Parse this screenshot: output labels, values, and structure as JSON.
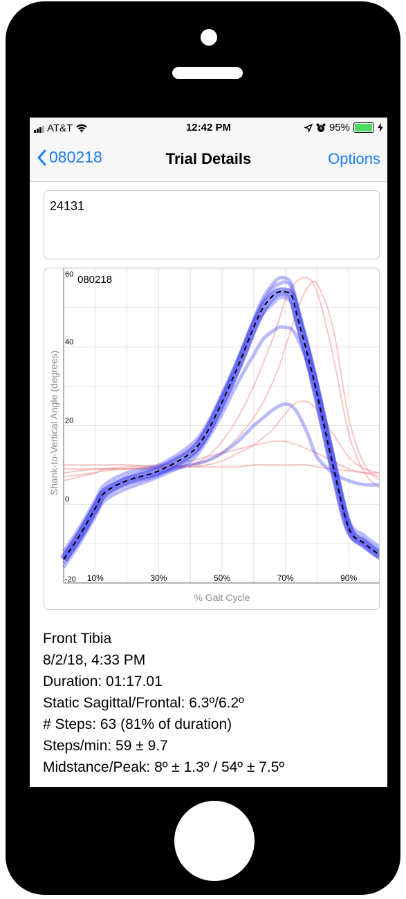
{
  "status_bar": {
    "carrier": "AT&T",
    "time": "12:42 PM",
    "battery_percent": "95%",
    "battery_level": 0.95
  },
  "nav": {
    "back_label": "080218",
    "title": "Trial Details",
    "options_label": "Options"
  },
  "notes": {
    "value": "24131"
  },
  "colors": {
    "accent": "#1a7cf5",
    "blue_trace": "#3a3cf0",
    "red_trace": "#f08080",
    "mean_line": "#000000"
  },
  "chart_data": {
    "type": "line",
    "title": "080218",
    "xlabel": "% Gait Cycle",
    "ylabel": "Shank-to-Vertical Angle (degrees)",
    "xlim": [
      0,
      100
    ],
    "ylim": [
      -20,
      60
    ],
    "x_ticks": [
      {
        "value": 10,
        "label": "10%"
      },
      {
        "value": 30,
        "label": "30%"
      },
      {
        "value": 50,
        "label": "50%"
      },
      {
        "value": 70,
        "label": "70%"
      },
      {
        "value": 90,
        "label": "90%"
      }
    ],
    "y_ticks": [
      {
        "value": 60,
        "label": "60"
      },
      {
        "value": 40,
        "label": "40"
      },
      {
        "value": 20,
        "label": "20"
      },
      {
        "value": 0,
        "label": "0"
      },
      {
        "value": -20,
        "label": "-20"
      }
    ],
    "grid": true,
    "x": [
      0,
      5,
      10,
      13,
      20,
      30,
      40,
      45,
      50,
      55,
      60,
      63,
      66,
      68,
      70,
      72,
      74,
      77,
      80,
      85,
      90,
      95,
      100
    ],
    "series": [
      {
        "style": "mean",
        "values": [
          -14,
          -8,
          -1,
          3,
          6,
          8.5,
          13,
          18,
          26,
          35,
          45,
          50,
          53,
          54,
          54,
          53,
          47,
          38,
          28,
          10,
          -6,
          -10,
          -13
        ]
      },
      {
        "style": "blue",
        "values": [
          -13,
          -7,
          0,
          4,
          7,
          9.5,
          14,
          19,
          27,
          36,
          46,
          51.5,
          55,
          56,
          56.5,
          55,
          49,
          40,
          30,
          12,
          -5,
          -9,
          -12
        ]
      },
      {
        "style": "blue",
        "values": [
          -15,
          -9,
          -2,
          2,
          5,
          7.5,
          12,
          17,
          25,
          34,
          44,
          48.5,
          51,
          52.5,
          52.5,
          51,
          45,
          36,
          26,
          8,
          -7,
          -11,
          -14
        ]
      },
      {
        "style": "blue",
        "values": [
          -12,
          -6,
          1,
          5,
          8,
          10,
          15,
          20,
          28,
          37,
          47,
          52.5,
          56,
          57.5,
          57.5,
          56,
          50,
          41,
          31,
          13,
          -4,
          -8,
          -11
        ]
      },
      {
        "style": "blue",
        "values": [
          -16,
          -10,
          -3,
          1,
          4,
          7,
          11,
          16,
          23,
          31,
          38,
          42,
          44,
          45,
          45,
          44.5,
          42,
          36,
          28,
          10,
          -6,
          -10,
          -13
        ]
      },
      {
        "style": "blue",
        "values": [
          -14,
          -8,
          -1,
          3,
          6,
          8,
          10,
          11,
          13,
          16,
          20,
          22,
          24,
          25,
          25.5,
          25,
          23,
          18,
          12,
          8,
          6,
          5,
          5
        ]
      },
      {
        "style": "red",
        "values": [
          8,
          8.5,
          9,
          9,
          9,
          9.5,
          10,
          12,
          16,
          22,
          30,
          36,
          42,
          47,
          52,
          55,
          57,
          57.5,
          54,
          38,
          18,
          8,
          4
        ]
      },
      {
        "style": "red",
        "values": [
          7,
          7.5,
          8,
          8.5,
          9,
          9.5,
          10,
          11,
          13,
          17,
          22,
          26,
          31,
          35,
          40,
          45,
          50,
          55,
          56,
          45,
          22,
          10,
          6
        ]
      },
      {
        "style": "red",
        "values": [
          9,
          9,
          9,
          9,
          9,
          9,
          9.5,
          10,
          11,
          13,
          15,
          17,
          19,
          21,
          23,
          25,
          26,
          26,
          24,
          18,
          12,
          9,
          8
        ]
      },
      {
        "style": "red",
        "values": [
          10,
          10,
          10,
          10,
          10,
          9.5,
          9.5,
          9.5,
          9.5,
          9.5,
          10,
          10,
          10,
          10,
          10,
          10,
          10,
          10,
          9.5,
          9,
          8.5,
          8,
          8
        ]
      },
      {
        "style": "red",
        "values": [
          6,
          7,
          8,
          9,
          9.5,
          10,
          11,
          12,
          13,
          14,
          15,
          15.5,
          16,
          16,
          16,
          15.5,
          15,
          14,
          13,
          11,
          9,
          8,
          7
        ]
      }
    ]
  },
  "details": {
    "sensor": "Front Tibia",
    "datetime": "8/2/18, 4:33 PM",
    "duration": "Duration: 01:17.01",
    "static": "Static Sagittal/Frontal: 6.3º/6.2º",
    "steps": "# Steps: 63 (81% of duration)",
    "cadence": "Steps/min: 59 ± 9.7",
    "midstance_peak": "Midstance/Peak: 8º ± 1.3º / 54º ± 7.5º"
  }
}
